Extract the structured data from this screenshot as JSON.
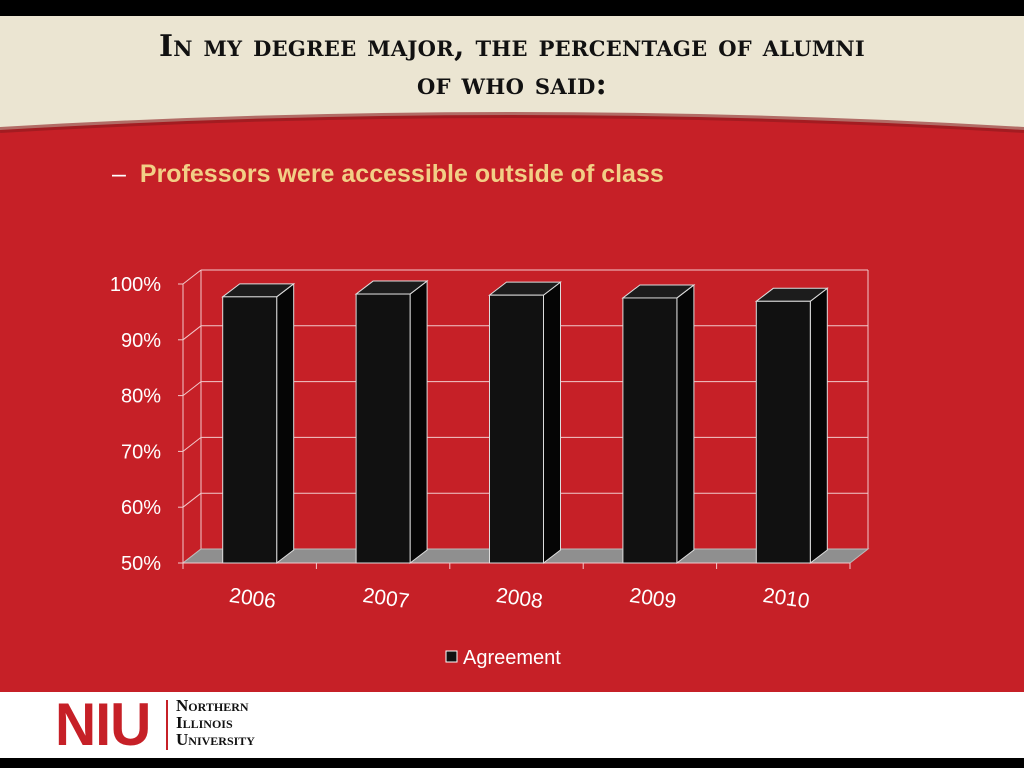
{
  "slide": {
    "title_line1": "In my degree major, the percentage of alumni",
    "title_line2": "of who said:",
    "bullet_dash": "–",
    "bullet_text": "Professors were accessible outside of class"
  },
  "logo": {
    "mark": "NIU",
    "name_line1": "Northern",
    "name_line2": "Illinois",
    "name_line3": "University"
  },
  "colors": {
    "red": "#c62027",
    "beige": "#ebe5d2",
    "bar_front": "#111111",
    "bullet": "#f2cf86"
  },
  "chart_data": {
    "type": "bar",
    "categories": [
      "2006",
      "2007",
      "2008",
      "2009",
      "2010"
    ],
    "series": [
      {
        "name": "Agreement",
        "values": [
          97.7,
          98.2,
          98.0,
          97.5,
          96.9
        ]
      }
    ],
    "ylim": [
      50,
      100
    ],
    "yticks": [
      "50%",
      "60%",
      "70%",
      "80%",
      "90%",
      "100%"
    ],
    "grid": true,
    "legend": "bottom",
    "style": "3d"
  }
}
